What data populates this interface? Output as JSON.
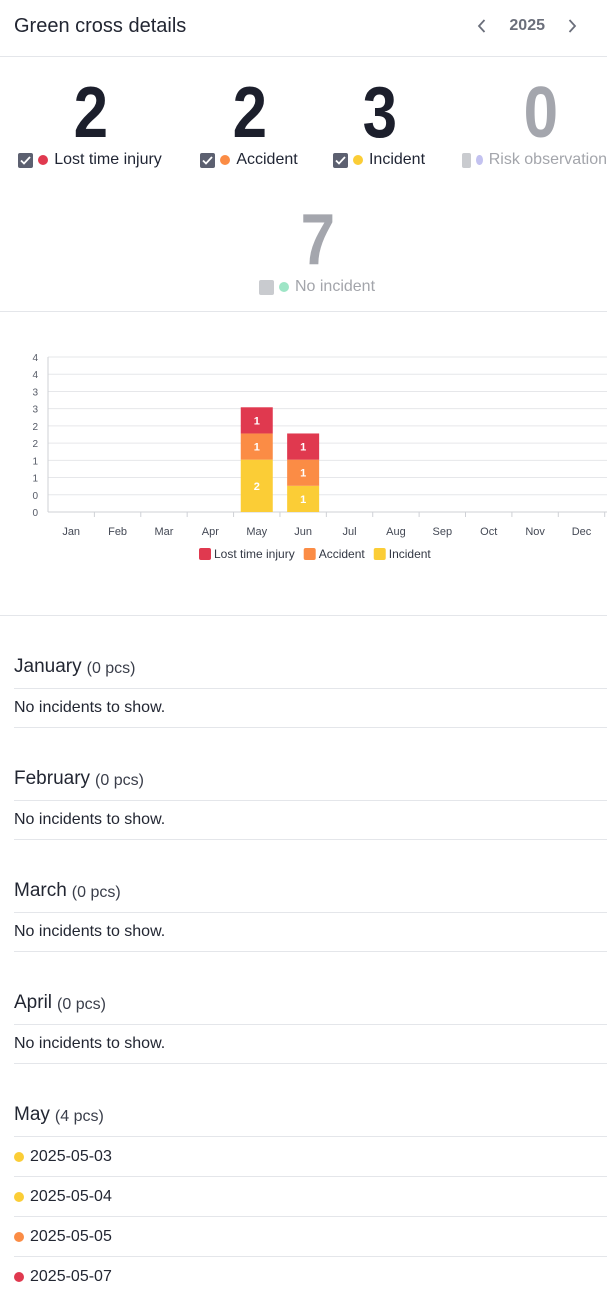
{
  "header": {
    "title": "Green cross details",
    "year": "2025"
  },
  "stats": [
    {
      "value": "2",
      "label": "Lost time injury",
      "checked": true,
      "color": "#e0394f"
    },
    {
      "value": "2",
      "label": "Accident",
      "checked": true,
      "color": "#fb8c45"
    },
    {
      "value": "3",
      "label": "Incident",
      "checked": true,
      "color": "#fbcd36"
    },
    {
      "value": "0",
      "label": "Risk observation",
      "checked": false,
      "color": "#c3c2f0"
    },
    {
      "value": "7",
      "label": "No incident",
      "checked": false,
      "color": "#9ee5c6"
    }
  ],
  "chart_data": {
    "type": "bar",
    "stacked": true,
    "categories": [
      "Jan",
      "Feb",
      "Mar",
      "Apr",
      "May",
      "Jun",
      "Jul",
      "Aug",
      "Sep",
      "Oct",
      "Nov",
      "Dec"
    ],
    "series": [
      {
        "name": "Incident",
        "color": "#fbcd36",
        "values": [
          0,
          0,
          0,
          0,
          2,
          1,
          0,
          0,
          0,
          0,
          0,
          0
        ]
      },
      {
        "name": "Accident",
        "color": "#fb8c45",
        "values": [
          0,
          0,
          0,
          0,
          1,
          1,
          0,
          0,
          0,
          0,
          0,
          0
        ]
      },
      {
        "name": "Lost time injury",
        "color": "#e0394f",
        "values": [
          0,
          0,
          0,
          0,
          1,
          1,
          0,
          0,
          0,
          0,
          0,
          0
        ]
      }
    ],
    "y_tick_labels": [
      "0",
      "0",
      "1",
      "1",
      "2",
      "2",
      "3",
      "3",
      "4",
      "4"
    ],
    "ylim": [
      0,
      4.5
    ],
    "legend_position": "bottom",
    "legend_order": [
      "Lost time injury",
      "Accident",
      "Incident"
    ],
    "grid": true
  },
  "months": [
    {
      "name": "January",
      "count": "(0 pcs)",
      "empty_text": "No incidents to show.",
      "items": []
    },
    {
      "name": "February",
      "count": "(0 pcs)",
      "empty_text": "No incidents to show.",
      "items": []
    },
    {
      "name": "March",
      "count": "(0 pcs)",
      "empty_text": "No incidents to show.",
      "items": []
    },
    {
      "name": "April",
      "count": "(0 pcs)",
      "empty_text": "No incidents to show.",
      "items": []
    },
    {
      "name": "May",
      "count": "(4 pcs)",
      "empty_text": "",
      "items": [
        {
          "date": "2025-05-03",
          "color": "#fbcd36"
        },
        {
          "date": "2025-05-04",
          "color": "#fbcd36"
        },
        {
          "date": "2025-05-05",
          "color": "#fb8c45"
        },
        {
          "date": "2025-05-07",
          "color": "#e0394f"
        }
      ]
    }
  ]
}
